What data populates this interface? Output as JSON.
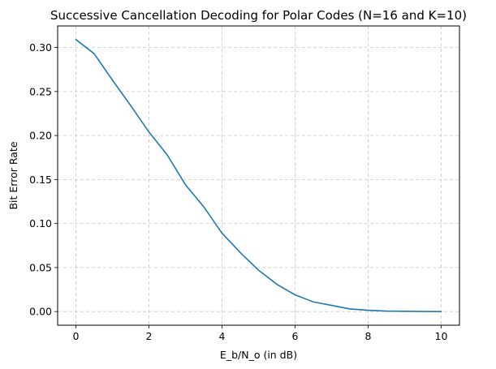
{
  "chart_data": {
    "type": "line",
    "title": "Successive Cancellation Decoding for Polar Codes (N=16 and K=10)",
    "xlabel": "E_b/N_o (in dB)",
    "ylabel": "Bit Error Rate",
    "xlim": [
      -0.5,
      10.5
    ],
    "ylim": [
      -0.0155,
      0.3245
    ],
    "xticks": [
      0,
      2,
      4,
      6,
      8,
      10
    ],
    "xtick_labels": [
      "0",
      "2",
      "4",
      "6",
      "8",
      "10"
    ],
    "yticks": [
      0.0,
      0.05,
      0.1,
      0.15,
      0.2,
      0.25,
      0.3
    ],
    "ytick_labels": [
      "0.00",
      "0.05",
      "0.10",
      "0.15",
      "0.20",
      "0.25",
      "0.30"
    ],
    "grid": true,
    "legend": false,
    "series": [
      {
        "color": "#1f77b4",
        "x": [
          0,
          0.5,
          1,
          1.5,
          2,
          2.5,
          3,
          3.5,
          4,
          4.5,
          5,
          5.5,
          6,
          6.5,
          7,
          7.5,
          8,
          8.5,
          9,
          9.5,
          10
        ],
        "y": [
          0.309,
          0.293,
          0.263,
          0.234,
          0.204,
          0.178,
          0.144,
          0.119,
          0.089,
          0.067,
          0.047,
          0.031,
          0.019,
          0.011,
          0.007,
          0.003,
          0.0015,
          0.0006,
          0.0003,
          0.0001,
          0.0
        ]
      }
    ]
  }
}
